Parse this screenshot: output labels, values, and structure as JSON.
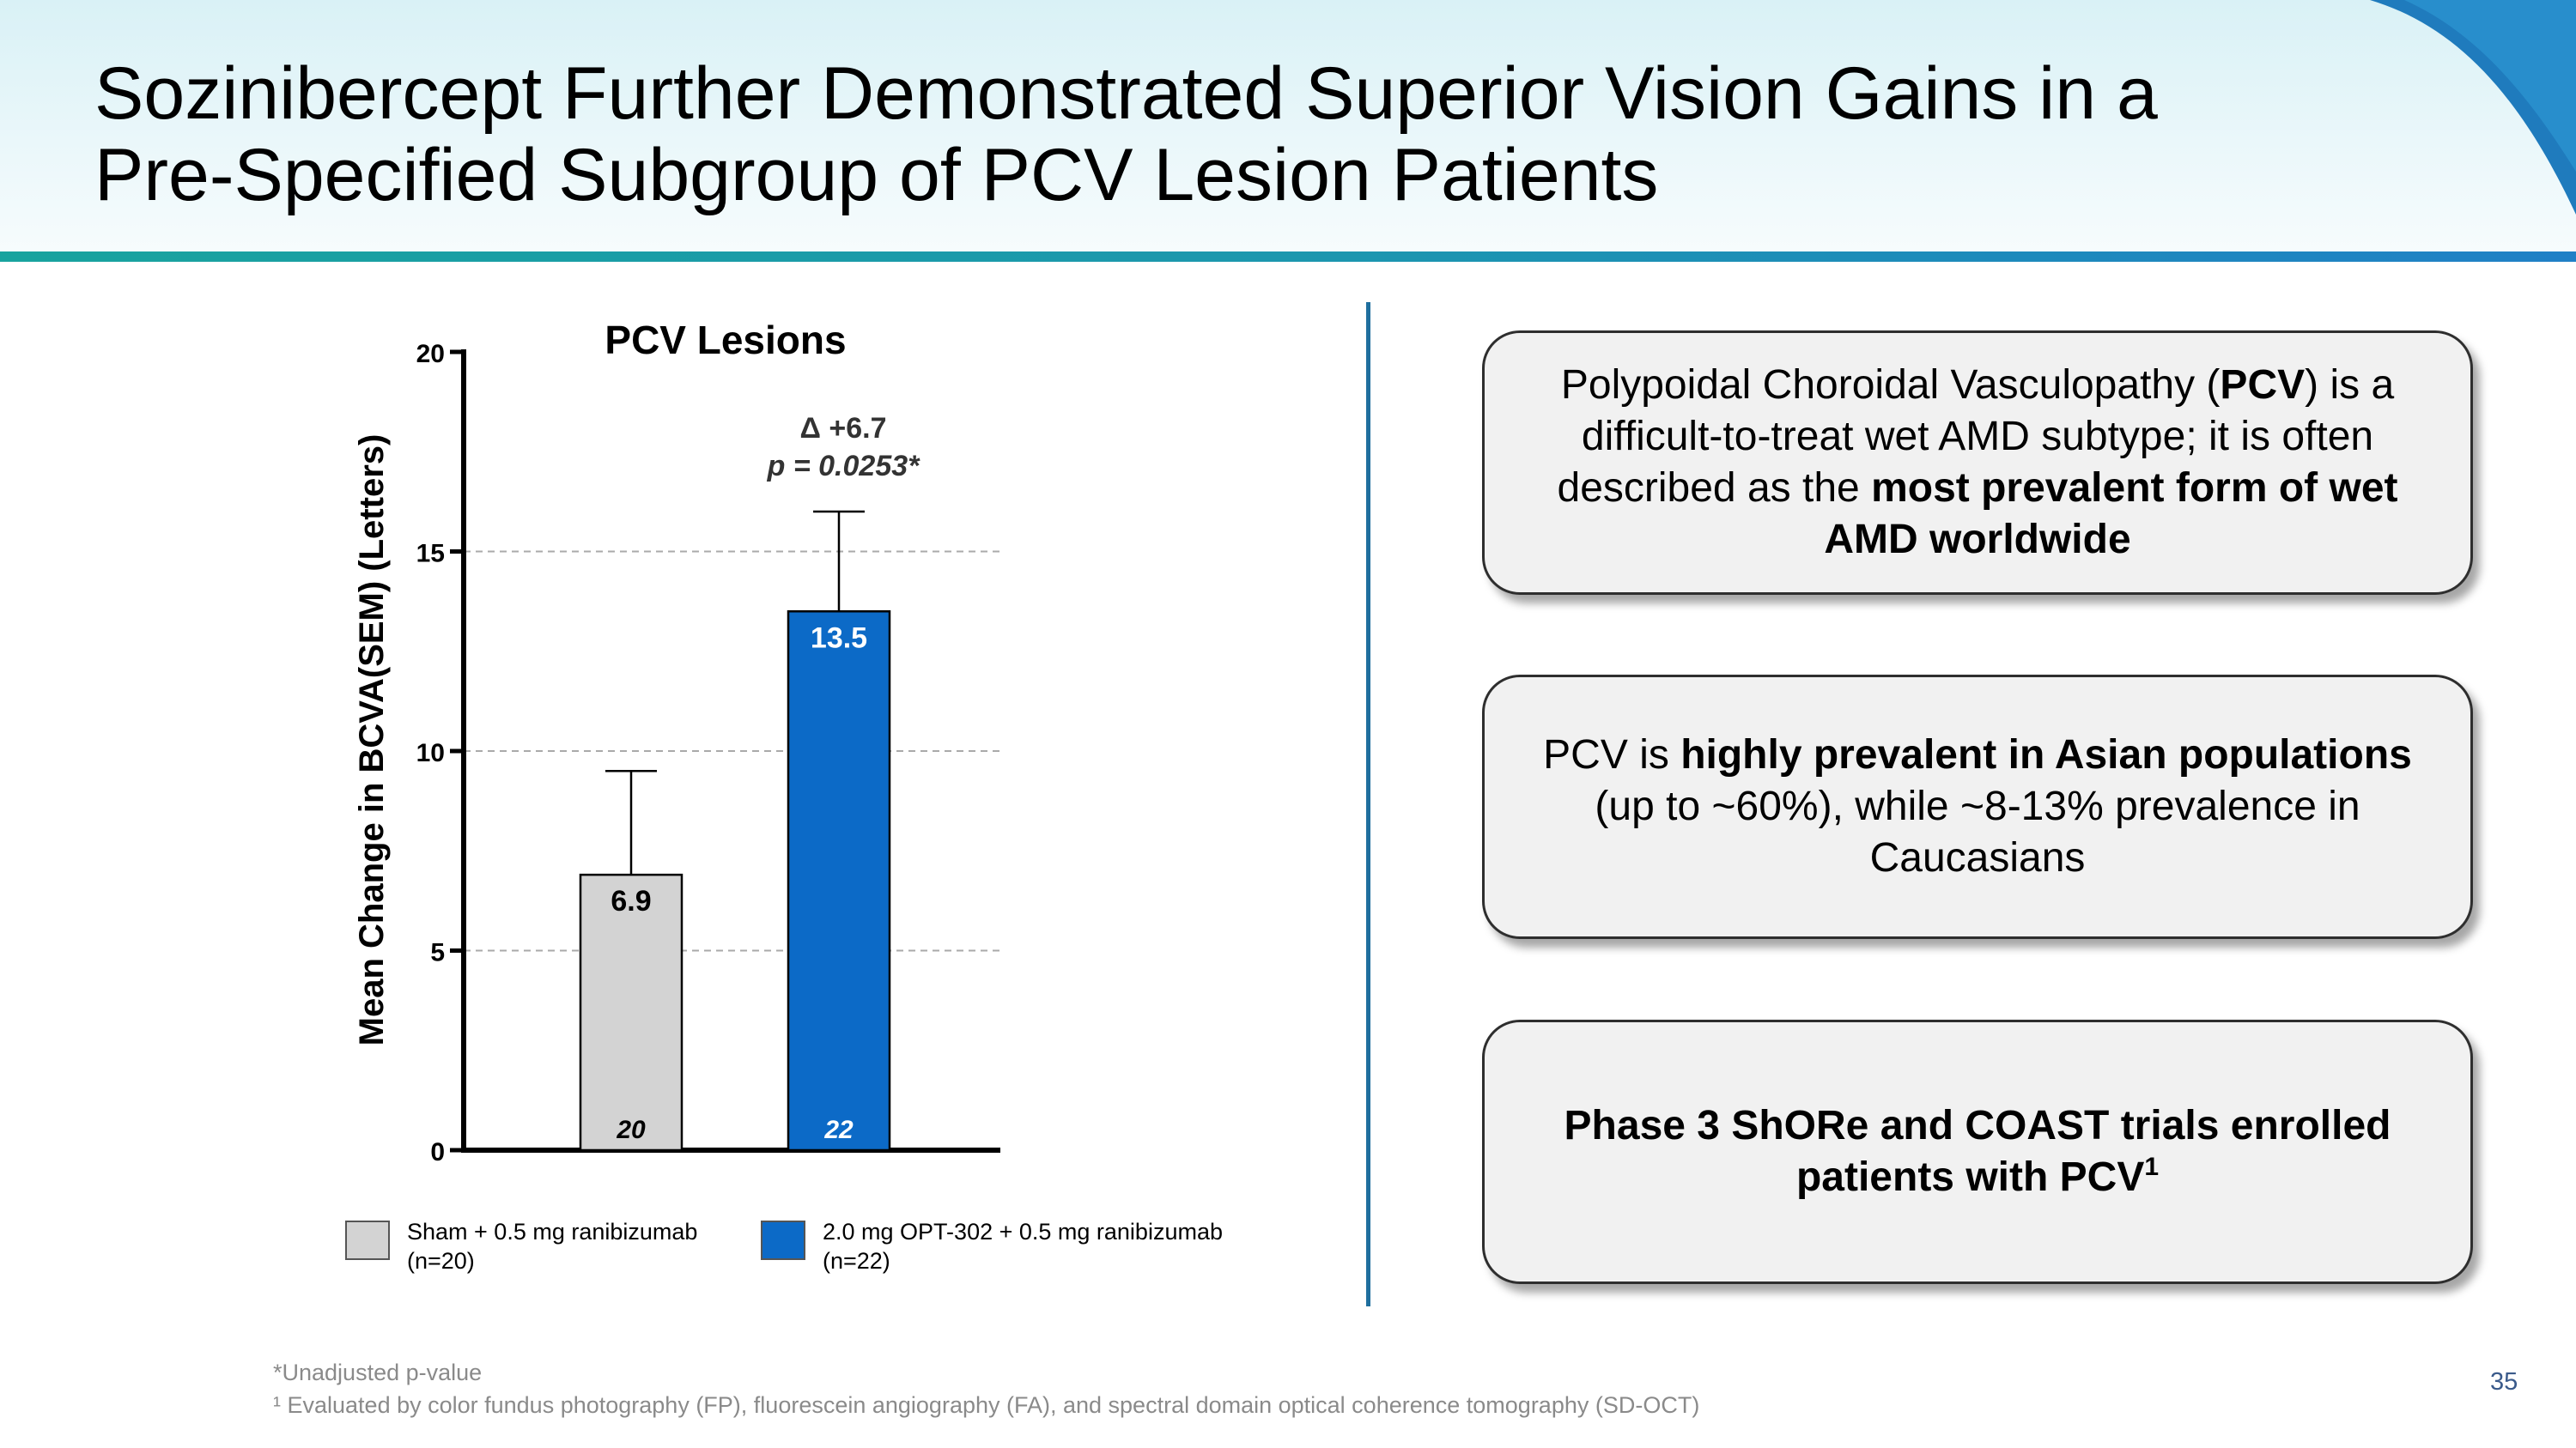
{
  "title_line1": "Sozinibercept Further Demonstrated Superior Vision Gains in a",
  "title_line2": "Pre-Specified Subgroup of PCV Lesion Patients",
  "colors": {
    "sham": "#d3d3d3",
    "opt": "#0c6ac7",
    "grid": "#aaaaaa",
    "divider": "#1f6f9e"
  },
  "chart_data": {
    "type": "bar",
    "title": "PCV Lesions",
    "ylabel": "Mean Change in BCVA(SEM) (Letters)",
    "xlabel": "",
    "ylim": [
      0,
      20
    ],
    "yticks": [
      0,
      5,
      10,
      15,
      20
    ],
    "categories": [
      "Sham + 0.5 mg ranibizumab",
      "2.0 mg OPT-302 + 0.5 mg ranibizumab"
    ],
    "values": [
      6.9,
      13.5
    ],
    "error_upper": [
      9.5,
      16.0
    ],
    "value_labels": [
      "6.9",
      "13.5"
    ],
    "n_labels": [
      "20",
      "22"
    ],
    "annotation": {
      "delta": "Δ +6.7",
      "p_value": "p = 0.0253*"
    },
    "grid": "horizontal dashed at 5, 10, 15",
    "legend_position": "bottom",
    "legend": [
      {
        "line1": "Sham + 0.5 mg ranibizumab",
        "line2": "(n=20)"
      },
      {
        "line1": "2.0 mg OPT-302 + 0.5 mg ranibizumab",
        "line2": "(n=22)"
      }
    ]
  },
  "boxes": [
    {
      "p1": "Polypoidal Choroidal Vasculopathy (",
      "b1": "PCV",
      "p2": ") is a difficult-to-treat wet AMD subtype; it is often described as the ",
      "b2": "most prevalent form of wet AMD worldwide"
    },
    {
      "p1": "PCV is ",
      "b1": "highly prevalent in Asian populations",
      "p2": " (up to ~60%), while ~8-13% prevalence in Caucasians"
    },
    {
      "b1": "Phase 3 ShORe and COAST trials enrolled patients with PCV",
      "sup": "1"
    }
  ],
  "footnotes": [
    "*Unadjusted p-value",
    "¹ Evaluated by color fundus photography (FP), fluorescein angiography (FA), and spectral domain optical coherence tomography (SD-OCT)"
  ],
  "page_number": "35"
}
